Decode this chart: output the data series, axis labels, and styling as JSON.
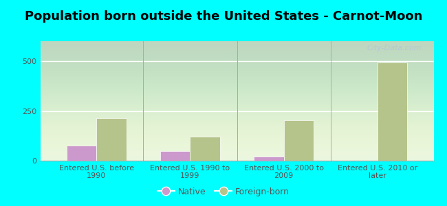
{
  "title": "Population born outside the United States - Carnot-Moon",
  "categories": [
    "Entered U.S. before\n1990",
    "Entered U.S. 1990 to\n1999",
    "Entered U.S. 2000 to\n2009",
    "Entered U.S. 2010 or\nlater"
  ],
  "native_values": [
    75,
    50,
    20,
    0
  ],
  "foreign_born_values": [
    215,
    120,
    205,
    493
  ],
  "native_color": "#cc99cc",
  "foreign_born_color": "#b5c48a",
  "background_color": "#00ffff",
  "title_fontsize": 13,
  "tick_fontsize": 8,
  "legend_fontsize": 9,
  "ylim": [
    0,
    600
  ],
  "yticks": [
    0,
    250,
    500
  ],
  "bar_width": 0.32,
  "watermark": "City-Data.com"
}
